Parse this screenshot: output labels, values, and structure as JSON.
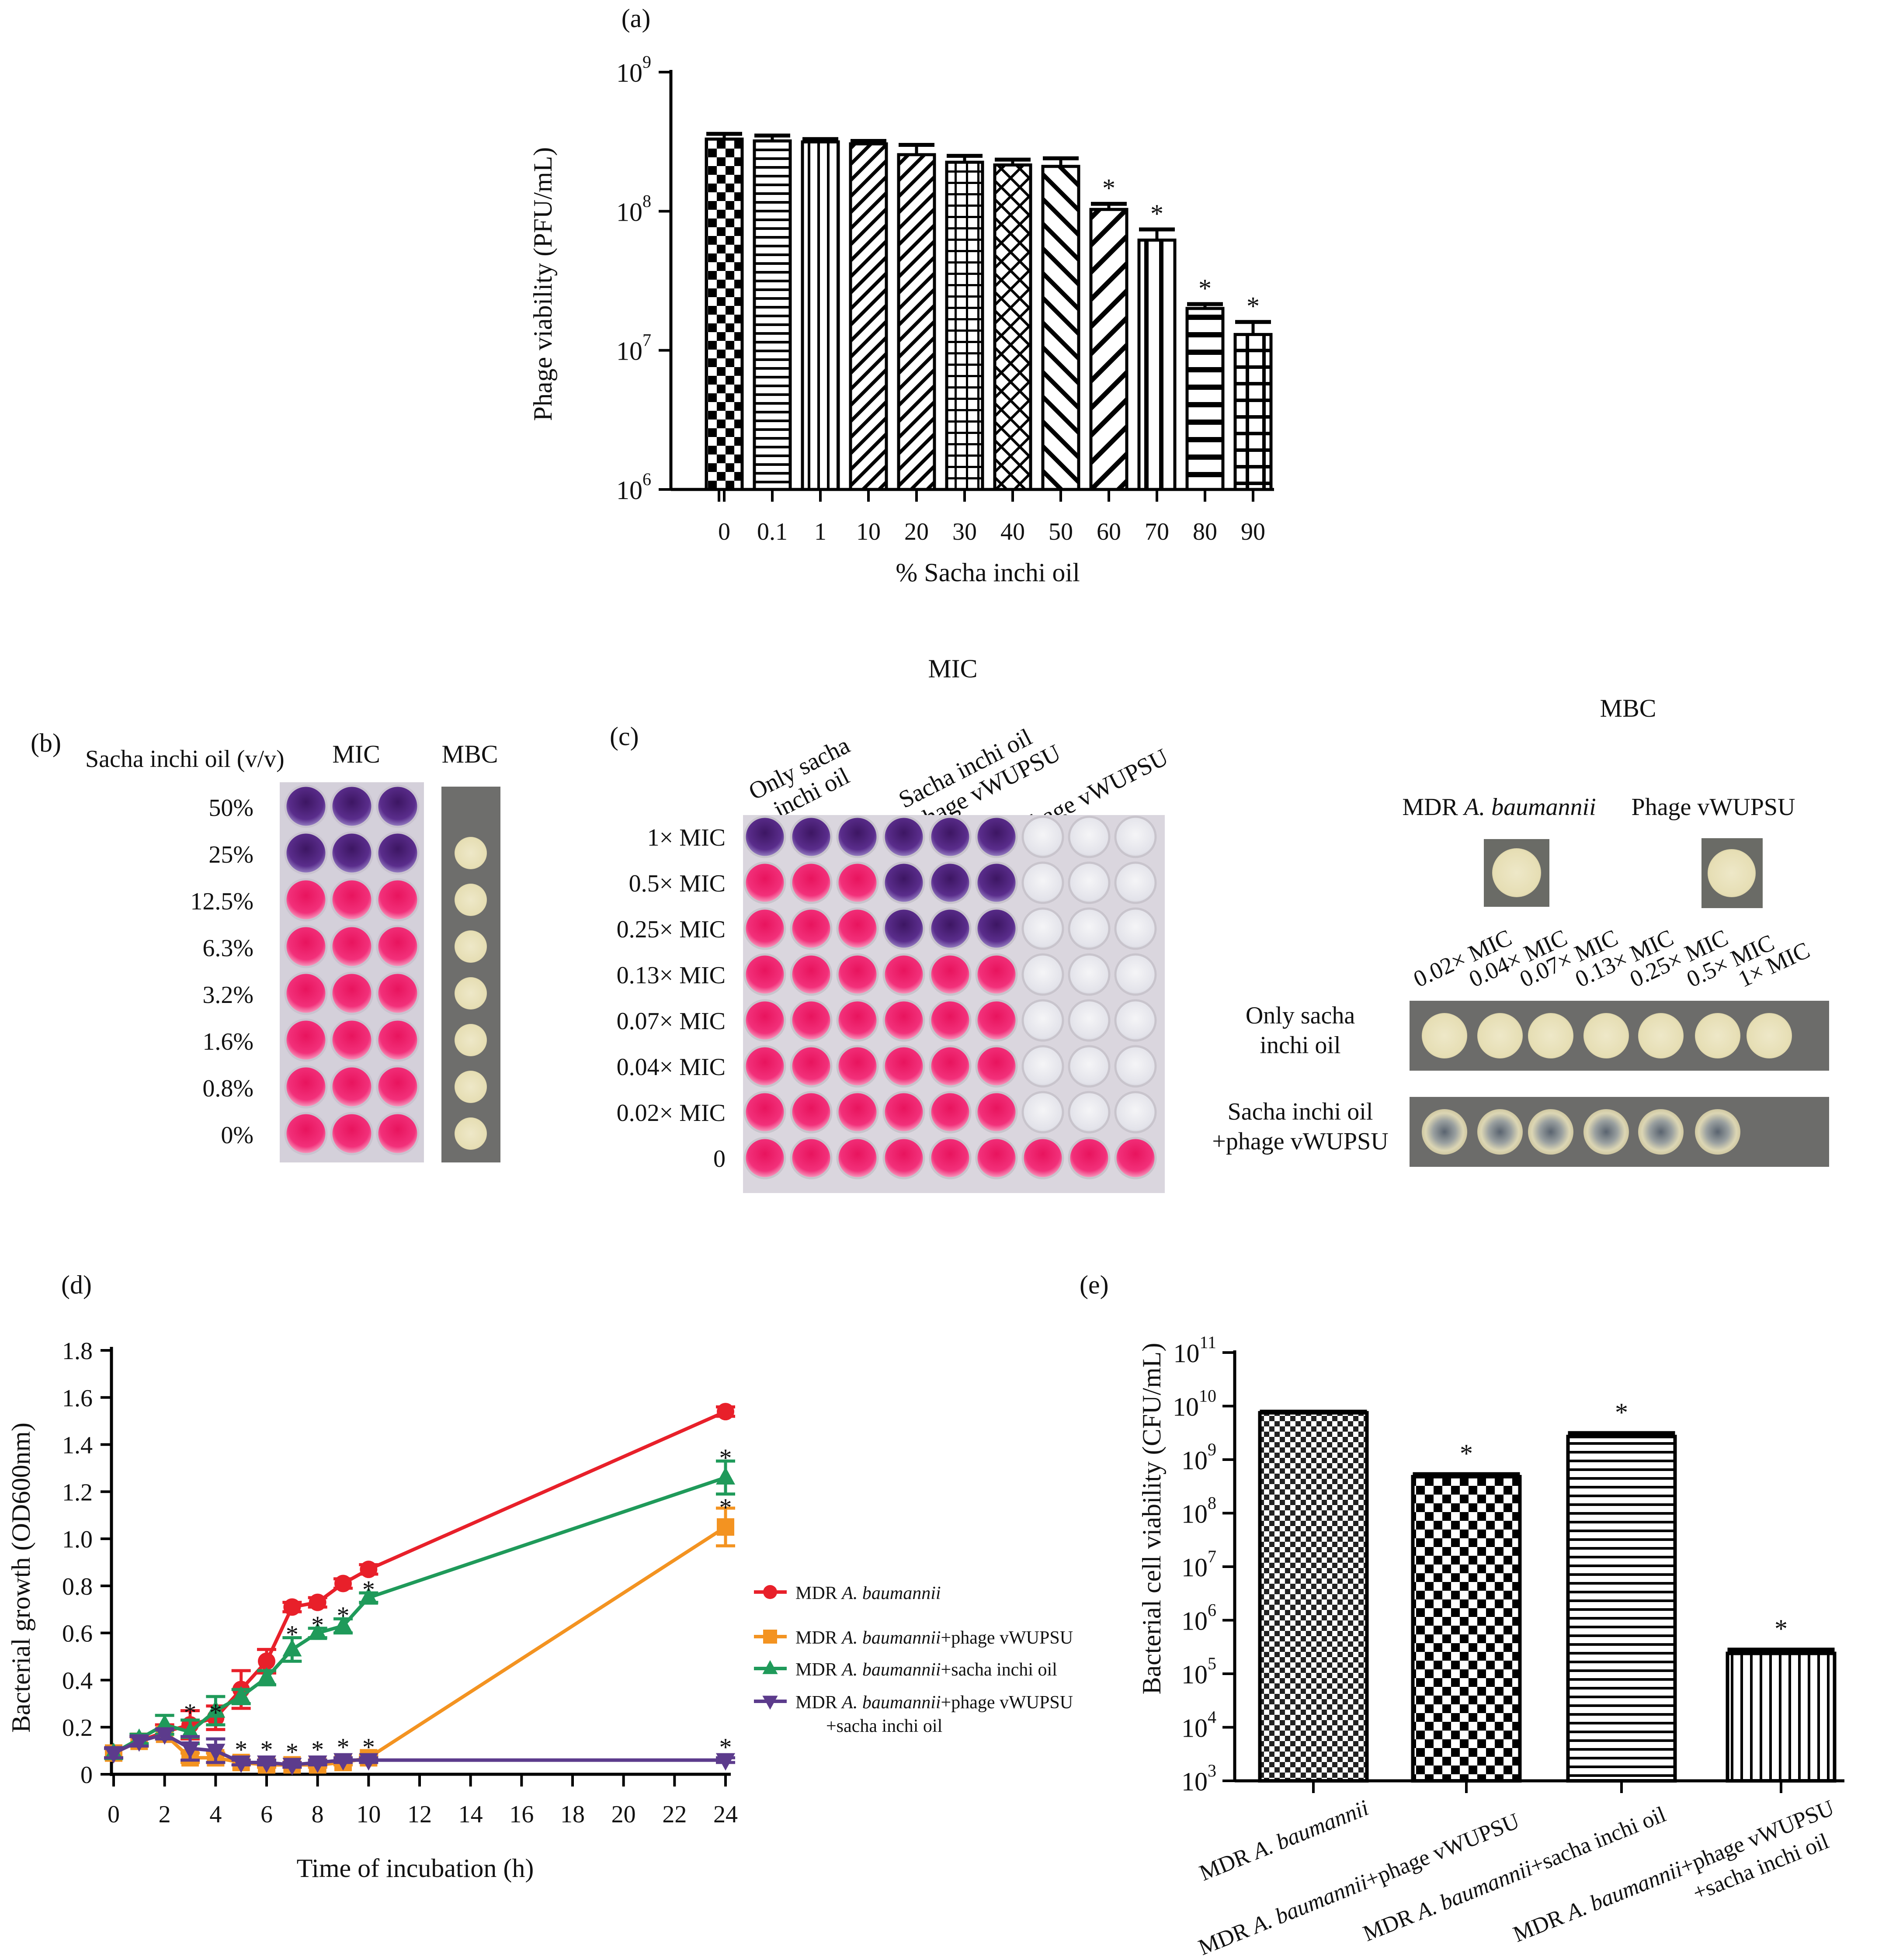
{
  "panel_a": {
    "label": "(a)",
    "chart_data": {
      "type": "bar",
      "yscale": "log",
      "ylim": [
        1000000,
        1000000000
      ],
      "ylabel": "Phage viability (PFU/mL)",
      "xlabel": "% Sacha inchi oil",
      "y_ticks": [
        {
          "base": "10",
          "exp": "6"
        },
        {
          "base": "10",
          "exp": "7"
        },
        {
          "base": "10",
          "exp": "8"
        },
        {
          "base": "10",
          "exp": "9"
        }
      ],
      "categories": [
        "0",
        "0.1",
        "1",
        "10",
        "20",
        "30",
        "40",
        "50",
        "60",
        "70",
        "80",
        "90"
      ],
      "values": [
        330000000,
        320000000,
        315000000,
        305000000,
        255000000,
        225000000,
        215000000,
        210000000,
        103000000,
        62000000,
        20000000,
        13000000
      ],
      "errors": [
        30000000,
        30000000,
        15000000,
        15000000,
        45000000,
        25000000,
        20000000,
        30000000,
        10000000,
        12000000,
        1500000,
        3000000
      ],
      "significance": [
        "",
        "",
        "",
        "",
        "",
        "",
        "",
        "",
        "*",
        "*",
        "*",
        "*"
      ],
      "patterns": [
        "checker",
        "hlines",
        "vlines",
        "diag-fine",
        "diag-fine",
        "grid",
        "crosshatch",
        "diag-back",
        "diag-coarse",
        "vlines-coarse",
        "hlines-coarse",
        "grid-coarse"
      ]
    }
  },
  "panel_b": {
    "label": "(b)",
    "header_concentration": "Sacha inchi oil (v/v)",
    "header_mic": "MIC",
    "header_mbc": "MBC",
    "rows": [
      "50%",
      "25%",
      "12.5%",
      "6.3%",
      "3.2%",
      "1.6%",
      "0.8%",
      "0%"
    ],
    "mic_colors": [
      "purple",
      "purple",
      "pink",
      "pink",
      "pink",
      "pink",
      "pink",
      "pink"
    ],
    "mbc_growth": [
      false,
      true,
      true,
      true,
      true,
      true,
      true,
      true
    ]
  },
  "panel_c": {
    "label": "(c)",
    "mic_title": "MIC",
    "mbc_title": "MBC",
    "col_headers": [
      [
        "Only sacha",
        "inchi oil"
      ],
      [
        "Sacha inchi oil",
        "+ phage vWUPSU"
      ],
      [
        "Phage vWUPSU"
      ]
    ],
    "rows": [
      "1× MIC",
      "0.5× MIC",
      "0.25× MIC",
      "0.13× MIC",
      "0.07× MIC",
      "0.04× MIC",
      "0.02× MIC",
      "0"
    ],
    "controls": [
      "MDR A. baumannii",
      "Phage vWUPSU"
    ],
    "control_parts": {
      "mdr_prefix": "MDR ",
      "mdr_species": "A. baumannii",
      "phage": "Phage vWUPSU"
    },
    "mbc_cols": [
      "0.02× MIC",
      "0.04× MIC",
      "0.07× MIC",
      "0.13× MIC",
      "0.25× MIC",
      "0.5× MIC",
      "1× MIC"
    ],
    "mbc_rows": [
      [
        "Only sacha",
        "inchi oil"
      ],
      [
        "Sacha inchi oil",
        "+phage vWUPSU"
      ]
    ],
    "mbc_growth_oil": [
      true,
      true,
      true,
      true,
      true,
      true,
      true
    ],
    "mbc_growth_combo": [
      true,
      true,
      true,
      true,
      true,
      true,
      false
    ]
  },
  "panel_d": {
    "label": "(d)",
    "chart_data": {
      "type": "line",
      "xlabel": "Time of incubation (h)",
      "ylabel": "Bacterial growth (OD600nm)",
      "xlim": [
        0,
        24
      ],
      "ylim": [
        0,
        1.8
      ],
      "x_ticks": [
        0,
        2,
        4,
        6,
        8,
        10,
        12,
        14,
        16,
        18,
        20,
        22,
        24
      ],
      "y_ticks": [
        "0",
        "0.2",
        "0.4",
        "0.6",
        "0.8",
        "1.0",
        "1.2",
        "1.4",
        "1.6",
        "1.8"
      ],
      "x": [
        0,
        1,
        2,
        3,
        4,
        5,
        6,
        7,
        8,
        9,
        10,
        24
      ],
      "series": [
        {
          "name": "MDR A. baumannii",
          "name_prefix": "MDR ",
          "name_species": "A. baumannii",
          "name_suffix": "",
          "name_suffix2": "",
          "color": "#e8202a",
          "marker": "circle",
          "values": [
            0.09,
            0.14,
            0.18,
            0.21,
            0.24,
            0.36,
            0.48,
            0.71,
            0.73,
            0.81,
            0.87,
            1.54
          ],
          "errors": [
            0.02,
            0.02,
            0.03,
            0.06,
            0.05,
            0.08,
            0.05,
            0.02,
            0.02,
            0.02,
            0.02,
            0.02
          ],
          "significance": [
            "",
            "",
            "",
            "",
            "",
            "",
            "",
            "",
            "",
            "",
            "",
            ""
          ]
        },
        {
          "name": "MDR A. baumannii+phage vWUPSU",
          "name_prefix": "MDR ",
          "name_species": "A. baumannii",
          "name_suffix": "+phage vWUPSU",
          "name_suffix2": "",
          "color": "#f39321",
          "marker": "square",
          "values": [
            0.09,
            0.14,
            0.17,
            0.07,
            0.07,
            0.05,
            0.04,
            0.04,
            0.04,
            0.05,
            0.07,
            1.05
          ],
          "errors": [
            0.02,
            0.02,
            0.02,
            0.02,
            0.02,
            0.01,
            0.01,
            0.01,
            0.01,
            0.01,
            0.01,
            0.08
          ],
          "significance": [
            "",
            "",
            "",
            "*",
            "*",
            "*",
            "*",
            "*",
            "*",
            "*",
            "*",
            "*"
          ]
        },
        {
          "name": "MDR A. baumannii+sacha inchi oil",
          "name_prefix": "MDR ",
          "name_species": "A. baumannii",
          "name_suffix": "+sacha inchi oil",
          "name_suffix2": "",
          "color": "#1f9a5a",
          "marker": "triangle",
          "values": [
            0.09,
            0.15,
            0.21,
            0.18,
            0.27,
            0.33,
            0.41,
            0.53,
            0.6,
            0.63,
            0.75,
            1.26
          ],
          "errors": [
            0.02,
            0.02,
            0.04,
            0.05,
            0.06,
            0.03,
            0.03,
            0.05,
            0.02,
            0.03,
            0.02,
            0.07
          ],
          "significance": [
            "",
            "",
            "",
            "",
            "",
            "",
            "",
            "*",
            "*",
            "*",
            "*",
            "*"
          ]
        },
        {
          "name": "MDR A. baumannii+phage vWUPSU +sacha inchi oil",
          "name_prefix": "MDR ",
          "name_species": "A. baumannii",
          "name_suffix": "+phage vWUPSU",
          "name_suffix2": "+sacha inchi oil",
          "color": "#5c3b8c",
          "marker": "triangle-down",
          "values": [
            0.09,
            0.14,
            0.17,
            0.11,
            0.1,
            0.05,
            0.05,
            0.04,
            0.05,
            0.06,
            0.06,
            0.06
          ],
          "errors": [
            0.02,
            0.02,
            0.02,
            0.05,
            0.05,
            0.01,
            0.01,
            0.01,
            0.01,
            0.01,
            0.01,
            0.01
          ],
          "significance": [
            "",
            "",
            "",
            "*",
            "*",
            "*",
            "*",
            "*",
            "*",
            "*",
            "*",
            "*"
          ]
        }
      ]
    }
  },
  "panel_e": {
    "label": "(e)",
    "chart_data": {
      "type": "bar",
      "yscale": "log",
      "ylim": [
        1000,
        100000000000
      ],
      "ylabel": "Bacterial cell viability (CFU/mL)",
      "y_ticks": [
        {
          "base": "10",
          "exp": "3"
        },
        {
          "base": "10",
          "exp": "4"
        },
        {
          "base": "10",
          "exp": "5"
        },
        {
          "base": "10",
          "exp": "6"
        },
        {
          "base": "10",
          "exp": "7"
        },
        {
          "base": "10",
          "exp": "8"
        },
        {
          "base": "10",
          "exp": "9"
        },
        {
          "base": "10",
          "exp": "10"
        },
        {
          "base": "10",
          "exp": "11"
        }
      ],
      "categories": [
        "MDR A. baumannii",
        "MDR A. baumannii+phage vWUPSU",
        "MDR A. baumannii+sacha inchi oil",
        "MDR A. baumannii+phage vWUPSU +sacha inchi oil"
      ],
      "category_parts": [
        {
          "prefix": "MDR ",
          "species": "A. baumannii",
          "suffix": "",
          "suffix2": ""
        },
        {
          "prefix": "MDR ",
          "species": "A. baumannii",
          "suffix": "+phage vWUPSU",
          "suffix2": ""
        },
        {
          "prefix": "MDR ",
          "species": "A. baumannii",
          "suffix": "+sacha inchi oil",
          "suffix2": ""
        },
        {
          "prefix": "MDR ",
          "species": "A. baumannii",
          "suffix": "+phage vWUPSU",
          "suffix2": "+sacha inchi oil"
        }
      ],
      "values": [
        7500000000,
        480000000,
        2700000000,
        240000
      ],
      "errors": [
        300000000,
        50000000,
        400000000,
        40000
      ],
      "significance": [
        "",
        "*",
        "*",
        "*"
      ],
      "patterns": [
        "fine-checker",
        "checker",
        "hlines",
        "vlines"
      ]
    }
  }
}
